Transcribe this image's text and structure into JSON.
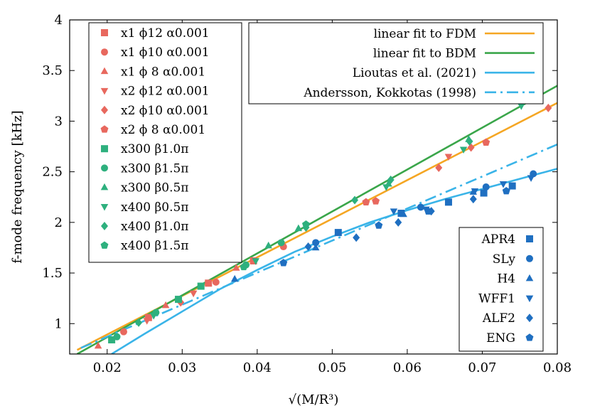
{
  "chart_data": {
    "type": "scatter",
    "xlabel": "√(M/R³)",
    "ylabel": "f-mode frequency [kHz]",
    "xlim": [
      0.015,
      0.08
    ],
    "ylim": [
      0.7,
      4.0
    ],
    "x_ticks": [
      "0.02",
      "0.03",
      "0.04",
      "0.05",
      "0.06",
      "0.07",
      "0.08"
    ],
    "y_ticks": [
      "1",
      "1.5",
      "2",
      "2.5",
      "3",
      "3.5",
      "4"
    ],
    "x_tick_values": [
      0.02,
      0.03,
      0.04,
      0.05,
      0.06,
      0.07,
      0.08
    ],
    "y_tick_values": [
      1,
      1.5,
      2,
      2.5,
      3,
      3.5,
      4
    ],
    "colors": {
      "red": "#e8685e",
      "green": "#2eb07e",
      "blue": "#1f6fc1",
      "orange": "#f5a623",
      "fitgreen": "#3aa64a",
      "lightblue": "#3ab4e8"
    },
    "lines": [
      {
        "name": "linear fit to FDM",
        "style": "solid",
        "color": "#f5a623",
        "x": [
          0.016,
          0.08
        ],
        "y": [
          0.74,
          3.18
        ]
      },
      {
        "name": "linear fit to BDM",
        "style": "solid",
        "color": "#3aa64a",
        "x": [
          0.016,
          0.08
        ],
        "y": [
          0.7,
          3.35
        ]
      },
      {
        "name": "Lioutas et al. (2021)",
        "style": "solid",
        "color": "#3ab4e8",
        "x": [
          0.0206,
          0.025,
          0.03,
          0.035,
          0.04,
          0.045,
          0.05,
          0.055,
          0.06,
          0.065,
          0.07,
          0.075,
          0.08
        ],
        "y": [
          0.7,
          0.9,
          1.12,
          1.34,
          1.53,
          1.71,
          1.86,
          2.0,
          2.12,
          2.23,
          2.33,
          2.43,
          2.53
        ]
      },
      {
        "name": "Andersson, Kokkotas (1998)",
        "style": "dashdot",
        "color": "#3ab4e8",
        "x": [
          0.0165,
          0.08
        ],
        "y": [
          0.76,
          2.77
        ]
      }
    ],
    "fdm_series": [
      {
        "name": "x1 ϕ12 α0.001",
        "marker": "square",
        "color": "#e8685e",
        "x": [
          0.0255,
          0.0335,
          0.0395
        ],
        "y": [
          1.06,
          1.4,
          1.62
        ]
      },
      {
        "name": "x1 ϕ10 α0.001",
        "marker": "circle",
        "color": "#e8685e",
        "x": [
          0.0222,
          0.0345,
          0.0435
        ],
        "y": [
          0.92,
          1.41,
          1.76
        ]
      },
      {
        "name": "x1 ϕ 8 α0.001",
        "marker": "triangle-up",
        "color": "#e8685e",
        "x": [
          0.0188,
          0.0278,
          0.0372
        ],
        "y": [
          0.78,
          1.18,
          1.55
        ]
      },
      {
        "name": "x2 ϕ12 α0.001",
        "marker": "triangle-down",
        "color": "#e8685e",
        "x": [
          0.0253,
          0.0315,
          0.0655
        ],
        "y": [
          1.03,
          1.3,
          2.65
        ]
      },
      {
        "name": "x2 ϕ10 α0.001",
        "marker": "diamond",
        "color": "#e8685e",
        "x": [
          0.0298,
          0.0642,
          0.0685,
          0.0788
        ],
        "y": [
          1.21,
          2.54,
          2.74,
          3.13
        ]
      },
      {
        "name": "x2 ϕ 8 α0.001",
        "marker": "pentagon",
        "color": "#e8685e",
        "x": [
          0.0545,
          0.0558,
          0.0705
        ],
        "y": [
          2.2,
          2.21,
          2.79
        ]
      },
      {
        "name": "x300 β1.0π",
        "marker": "square",
        "color": "#2eb07e",
        "x": [
          0.0206,
          0.0295,
          0.0325
        ],
        "y": [
          0.84,
          1.24,
          1.37
        ]
      },
      {
        "name": "x300 β1.5π",
        "marker": "circle",
        "color": "#2eb07e",
        "x": [
          0.0213,
          0.0265,
          0.0385,
          0.0432
        ],
        "y": [
          0.87,
          1.11,
          1.58,
          1.8
        ]
      },
      {
        "name": "x300 β0.5π",
        "marker": "triangle-up",
        "color": "#2eb07e",
        "x": [
          0.0415,
          0.0455,
          0.0575,
          0.0682
        ],
        "y": [
          1.77,
          1.94,
          2.38,
          2.82
        ]
      },
      {
        "name": "x400 β0.5π",
        "marker": "triangle-down",
        "color": "#2eb07e",
        "x": [
          0.0262,
          0.0398,
          0.0572,
          0.0675,
          0.0752
        ],
        "y": [
          1.08,
          1.62,
          2.35,
          2.72,
          3.15
        ]
      },
      {
        "name": "x400 β1.0π",
        "marker": "diamond",
        "color": "#2eb07e",
        "x": [
          0.0242,
          0.0465,
          0.053,
          0.0578,
          0.0683
        ],
        "y": [
          1.01,
          1.95,
          2.22,
          2.42,
          2.8
        ]
      },
      {
        "name": "x400 β1.5π",
        "marker": "pentagon",
        "color": "#2eb07e",
        "x": [
          0.0465,
          0.0382
        ],
        "y": [
          1.98,
          1.56
        ]
      }
    ],
    "eos_series": [
      {
        "name": "APR4",
        "marker": "square",
        "color": "#1f6fc1",
        "x": [
          0.0508,
          0.0592,
          0.0655,
          0.0702,
          0.074
        ],
        "y": [
          1.9,
          2.09,
          2.2,
          2.29,
          2.36
        ]
      },
      {
        "name": "SLy",
        "marker": "circle",
        "color": "#1f6fc1",
        "x": [
          0.0478,
          0.0618,
          0.0705,
          0.0768
        ],
        "y": [
          1.8,
          2.15,
          2.35,
          2.48
        ]
      },
      {
        "name": "H4",
        "marker": "triangle-up",
        "color": "#1f6fc1",
        "x": [
          0.037,
          0.0478,
          0.0595,
          0.0688
        ],
        "y": [
          1.44,
          1.75,
          2.08,
          2.3
        ]
      },
      {
        "name": "WFF1",
        "marker": "triangle-down",
        "color": "#1f6fc1",
        "x": [
          0.0582,
          0.0625,
          0.069,
          0.0728,
          0.0765
        ],
        "y": [
          2.11,
          2.13,
          2.31,
          2.38,
          2.44
        ]
      },
      {
        "name": "ALF2",
        "marker": "diamond",
        "color": "#1f6fc1",
        "x": [
          0.0468,
          0.0532,
          0.0588,
          0.0632,
          0.0688
        ],
        "y": [
          1.76,
          1.85,
          2.0,
          2.11,
          2.23
        ]
      },
      {
        "name": "ENG",
        "marker": "pentagon",
        "color": "#1f6fc1",
        "x": [
          0.0435,
          0.0562,
          0.0628,
          0.0732
        ],
        "y": [
          1.6,
          1.97,
          2.11,
          2.31
        ]
      }
    ],
    "legends": {
      "fdm": "top-left",
      "fits": "top-center",
      "eos": "bottom-right"
    }
  }
}
